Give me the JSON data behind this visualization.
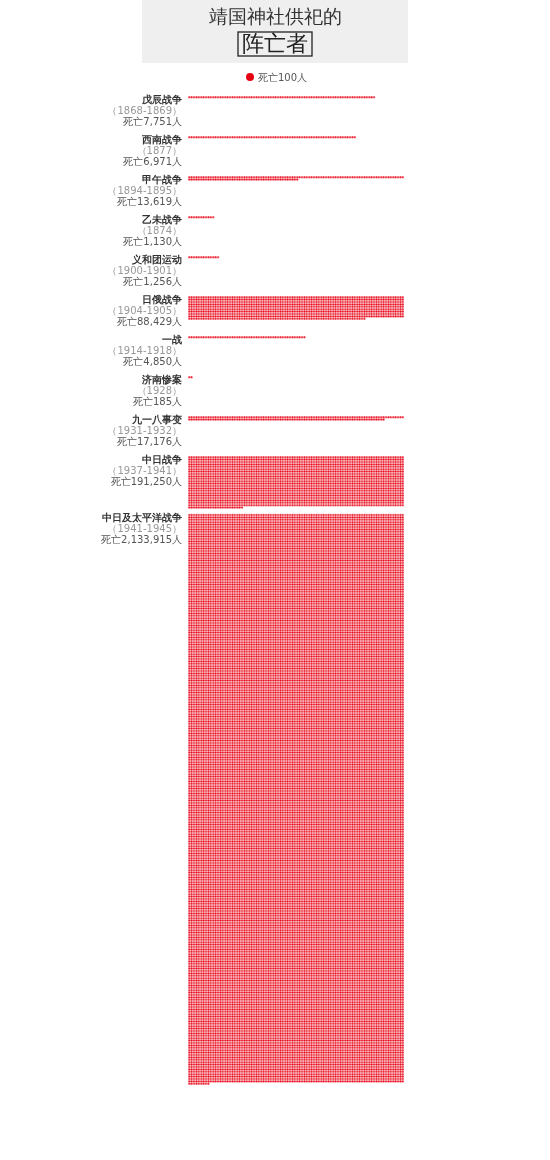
{
  "chart_data": {
    "type": "other",
    "title": "靖国神社供祀的",
    "subtitle": "阵亡者",
    "categories": [
      "戊辰战争（1868-1869）",
      "西南战争（1877）",
      "甲午战争（1894-1895）",
      "乙未战争（1874）",
      "义和团运动（1900-1901）",
      "日俄战争（1904-1905）",
      "一战（1914-1918）",
      "济南惨案（1928）",
      "九一八事变（1931-1932）",
      "中日战争（1937-1941）",
      "中日及太平洋战争（1941-1945）"
    ],
    "series": [
      {
        "name": "死亡100人",
        "color": "#e60012",
        "values": [
          7751,
          6971,
          13619,
          1130,
          1256,
          88429,
          4850,
          185,
          17176,
          191250,
          2133915
        ],
        "value_labels": [
          "死亡7,751人",
          "死亡6,971人",
          "死亡13,619人",
          "死亡1,130人",
          "死亡1,256人",
          "死亡88,429人",
          "死亡4,850人",
          "死亡185人",
          "死亡17,176人",
          "死亡191,250人",
          "死亡2,133,915人"
        ]
      }
    ],
    "legend": "top"
  }
}
